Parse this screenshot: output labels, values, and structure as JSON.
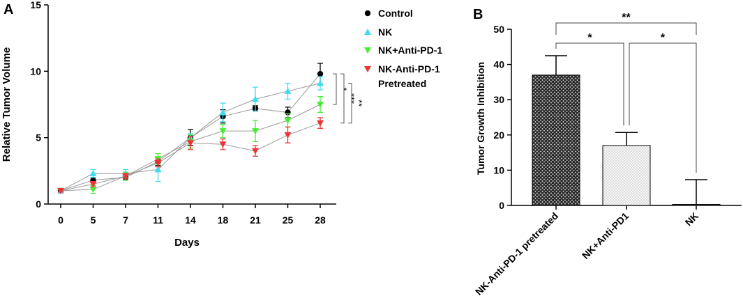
{
  "chart_data": [
    {
      "type": "line",
      "panel_label": "A",
      "title": "",
      "xlabel": "Days",
      "ylabel": "Relative Tumor Volume",
      "x": [
        0,
        5,
        7,
        11,
        14,
        18,
        21,
        25,
        28
      ],
      "x_tick_labels": [
        "0",
        "5",
        "7",
        "11",
        "14",
        "18",
        "21",
        "25",
        "28"
      ],
      "ylim": [
        0,
        15
      ],
      "y_ticks": [
        0,
        5,
        10,
        15
      ],
      "series": [
        {
          "name": "Control",
          "marker": "circle",
          "color": "#000000",
          "values": [
            1.0,
            1.8,
            2.0,
            3.2,
            5.0,
            6.6,
            7.2,
            6.9,
            9.8
          ],
          "errors": [
            0.1,
            0.2,
            0.2,
            0.3,
            0.6,
            0.5,
            0.2,
            0.4,
            0.8
          ]
        },
        {
          "name": "NK",
          "marker": "triangle-up",
          "color": "#3fdcf0",
          "values": [
            1.0,
            2.3,
            2.3,
            2.6,
            5.0,
            6.9,
            7.9,
            8.5,
            9.1
          ],
          "errors": [
            0.1,
            0.3,
            0.3,
            0.9,
            0.3,
            0.7,
            0.9,
            0.6,
            0.5
          ]
        },
        {
          "name": "NK+Anti-PD-1",
          "marker": "triangle-down",
          "color": "#44ee33",
          "values": [
            1.0,
            1.1,
            2.1,
            3.4,
            4.7,
            5.5,
            5.5,
            6.3,
            7.5
          ],
          "errors": [
            0.1,
            0.3,
            0.3,
            0.4,
            0.5,
            0.5,
            0.8,
            0.5,
            0.6
          ]
        },
        {
          "name": "NK-Anti-PD-1 Pretreated",
          "marker": "triangle-down",
          "color": "#ee3333",
          "values": [
            1.0,
            1.5,
            2.1,
            3.1,
            4.6,
            4.5,
            4.0,
            5.2,
            6.1
          ],
          "errors": [
            0.1,
            0.2,
            0.2,
            0.3,
            0.5,
            0.4,
            0.4,
            0.6,
            0.4
          ]
        }
      ],
      "legend": [
        "Control",
        "NK",
        "NK+Anti-PD-1",
        "NK-Anti-PD-1 Pretreated"
      ],
      "legend_lines": [
        [
          "Control"
        ],
        [
          "NK"
        ],
        [
          "NK+Anti-PD-1"
        ],
        [
          "NK-Anti-PD-1",
          "Pretreated"
        ]
      ],
      "legend_position": "right",
      "significance": [
        {
          "between": "Control vs NK+Anti-PD-1",
          "label": "*"
        },
        {
          "between": "Control vs NK-Anti-PD-1 Pretreated",
          "label": "***"
        },
        {
          "between": "NK vs NK-Anti-PD-1 Pretreated",
          "label": "**"
        }
      ]
    },
    {
      "type": "bar",
      "panel_label": "B",
      "title": "",
      "xlabel": "",
      "ylabel": "Tumor Growth Inhibition",
      "categories": [
        "NK-Anti-PD-1 pretreated",
        "NK+Anti-PD1",
        "NK"
      ],
      "values": [
        37,
        17,
        0.3
      ],
      "errors": [
        5.5,
        3.7,
        7.0
      ],
      "ylim": [
        0,
        50
      ],
      "y_ticks": [
        0,
        10,
        20,
        30,
        40,
        50
      ],
      "bar_styles": [
        "crosshatch-dark",
        "dotted-light",
        "none"
      ],
      "significance": [
        {
          "between": "NK-Anti-PD-1 pretreated vs NK+Anti-PD1",
          "label": "*"
        },
        {
          "between": "NK+Anti-PD1 vs NK",
          "label": "*"
        },
        {
          "between": "NK-Anti-PD-1 pretreated vs NK",
          "label": "**"
        }
      ]
    }
  ]
}
